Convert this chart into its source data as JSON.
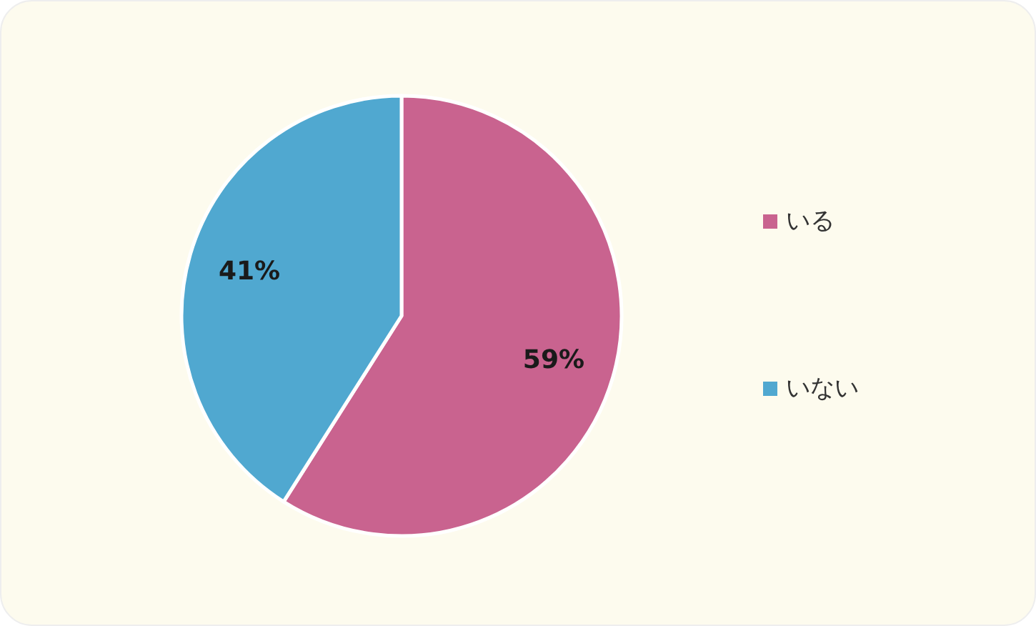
{
  "chart_data": {
    "type": "pie",
    "categories": [
      "いる",
      "いない"
    ],
    "values": [
      59,
      41
    ],
    "colors": [
      "#c9638f",
      "#50a8d0"
    ],
    "value_labels": [
      "59%",
      "41%"
    ],
    "legend": "right"
  }
}
